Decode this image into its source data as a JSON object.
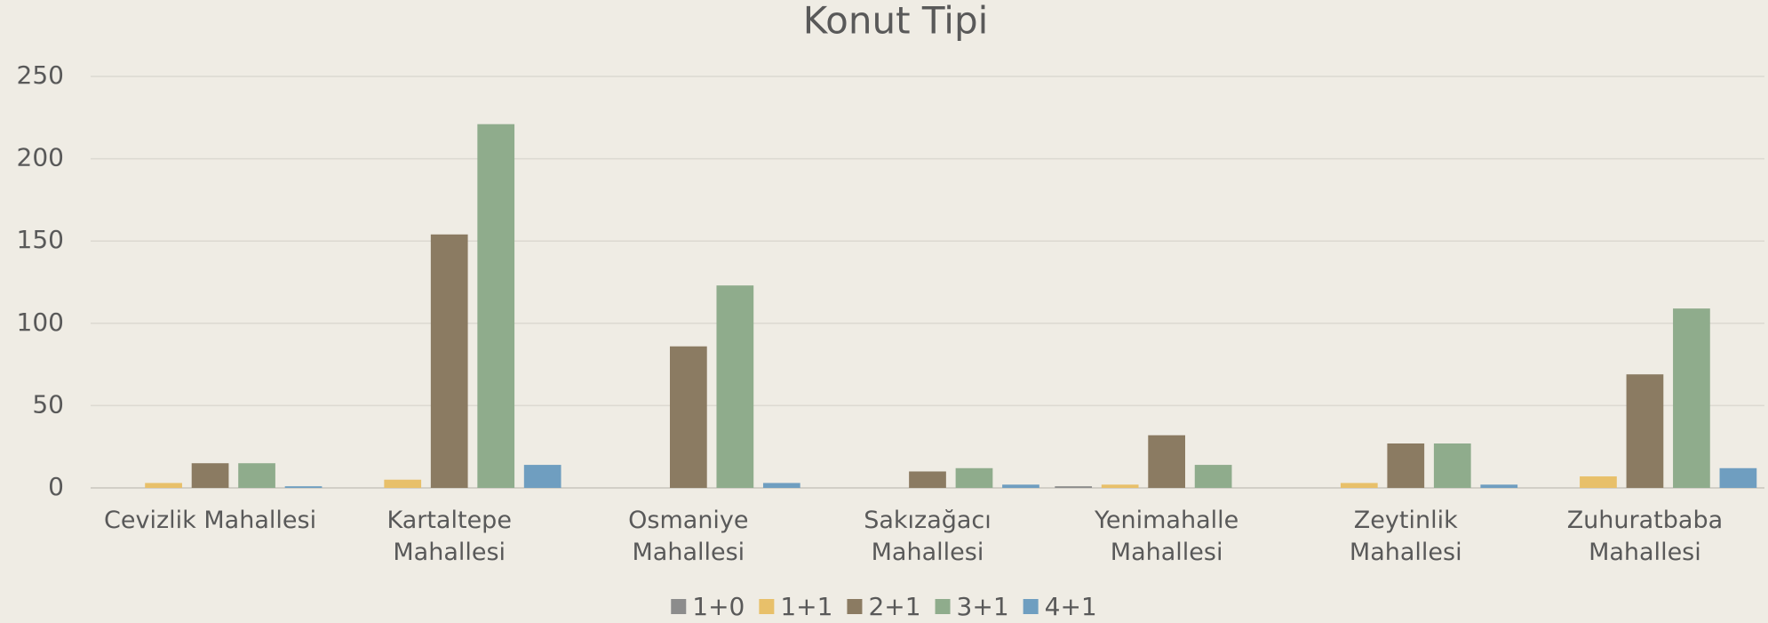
{
  "chart_data": {
    "type": "bar",
    "title": "Konut Tipi",
    "categories": [
      "Cevizlik Mahallesi",
      "Kartaltepe Mahallesi",
      "Osmaniye Mahallesi",
      "Sakızağacı Mahallesi",
      "Yenimahalle Mahallesi",
      "Zeytinlik Mahallesi",
      "Zuhuratbaba Mahallesi"
    ],
    "series": [
      {
        "name": "1+0",
        "color": "#8c8c8c",
        "values": [
          0,
          0,
          0,
          0,
          1,
          0,
          0
        ]
      },
      {
        "name": "1+1",
        "color": "#e8c06a",
        "values": [
          3,
          5,
          0,
          0,
          2,
          3,
          7
        ]
      },
      {
        "name": "2+1",
        "color": "#8b7b62",
        "values": [
          15,
          154,
          86,
          10,
          32,
          27,
          69
        ]
      },
      {
        "name": "3+1",
        "color": "#8fac8c",
        "values": [
          15,
          221,
          123,
          12,
          14,
          27,
          109
        ]
      },
      {
        "name": "4+1",
        "color": "#6f9ec0",
        "values": [
          1,
          14,
          3,
          2,
          0,
          2,
          12
        ]
      }
    ],
    "ylim": [
      0,
      250
    ],
    "yticks": [
      0,
      50,
      100,
      150,
      200,
      250
    ],
    "grid": true,
    "legend": "bottom"
  }
}
